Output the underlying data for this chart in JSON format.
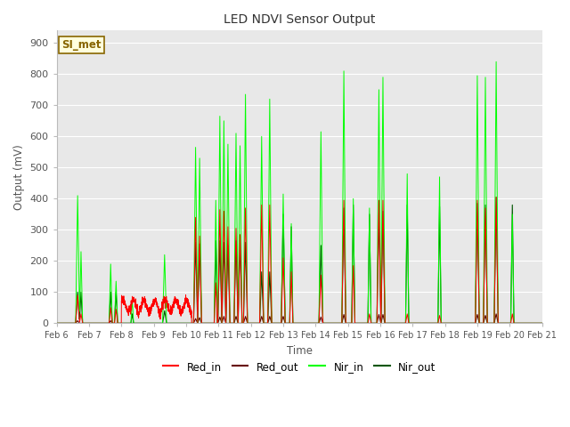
{
  "title": "LED NDVI Sensor Output",
  "xlabel": "Time",
  "ylabel": "Output (mV)",
  "ylim": [
    0,
    940
  ],
  "yticks": [
    0,
    100,
    200,
    300,
    400,
    500,
    600,
    700,
    800,
    900
  ],
  "background_color": "#ffffff",
  "plot_bg_color": "#e8e8e8",
  "grid_color": "#ffffff",
  "legend_label": "SI_met",
  "legend_bg": "#ffffdd",
  "legend_border": "#886600",
  "series_colors": {
    "Red_in": "#ff0000",
    "Red_out": "#660000",
    "Nir_in": "#00ff00",
    "Nir_out": "#005500"
  },
  "date_labels": [
    "Feb 6",
    "Feb 7",
    "Feb 8",
    "Feb 9",
    "Feb 10",
    "Feb 11",
    "Feb 12",
    "Feb 13",
    "Feb 14",
    "Feb 15",
    "Feb 16",
    "Feb 17",
    "Feb 18",
    "Feb 19",
    "Feb 20",
    "Feb 21"
  ],
  "date_positions": [
    0,
    24,
    48,
    72,
    96,
    120,
    144,
    168,
    192,
    216,
    240,
    264,
    288,
    312,
    336,
    360
  ]
}
